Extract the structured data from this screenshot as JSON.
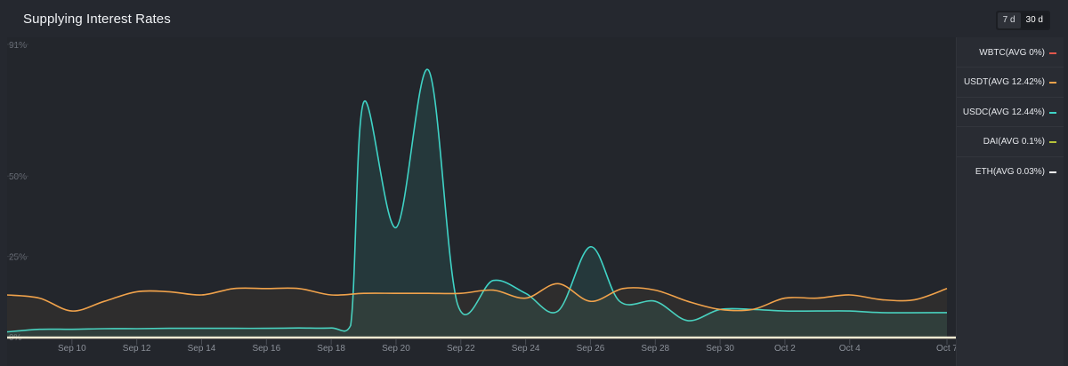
{
  "header": {
    "title": "Supplying Interest Rates",
    "range_options": [
      "7 d",
      "30 d"
    ],
    "range_selected": "30 d"
  },
  "legend": [
    {
      "label": "WBTC(AVG 0%)",
      "color": "#e2574c"
    },
    {
      "label": "USDT(AVG 12.42%)",
      "color": "#f0a24b"
    },
    {
      "label": "USDC(AVG 12.44%)",
      "color": "#3fd3c6"
    },
    {
      "label": "DAI(AVG 0.1%)",
      "color": "#b7c43a"
    },
    {
      "label": "ETH(AVG 0.03%)",
      "color": "#ffffff"
    }
  ],
  "chart_data": {
    "type": "line",
    "title": "Supplying Interest Rates",
    "x_tick_labels": [
      "Sep 10",
      "Sep 12",
      "Sep 14",
      "Sep 16",
      "Sep 18",
      "Sep 20",
      "Sep 22",
      "Sep 24",
      "Sep 26",
      "Sep 28",
      "Sep 30",
      "Oct 2",
      "Oct 4",
      "Oct 7"
    ],
    "y_tick_labels": [
      "0%",
      "25%",
      "50%",
      "91%"
    ],
    "y_ticks": [
      0,
      25,
      50,
      91
    ],
    "ylim": [
      0,
      91
    ],
    "x_range": [
      "Sep 8",
      "Oct 7"
    ],
    "grid": false,
    "legend_placement": "right",
    "series": [
      {
        "name": "USDC(AVG 12.44%)",
        "color": "#3fd3c6",
        "points": [
          [
            "Sep 8",
            1.5
          ],
          [
            "Sep 9",
            2.3
          ],
          [
            "Sep 10",
            2.3
          ],
          [
            "Sep 11",
            2.5
          ],
          [
            "Sep 12",
            2.5
          ],
          [
            "Sep 13",
            2.6
          ],
          [
            "Sep 14",
            2.6
          ],
          [
            "Sep 15",
            2.6
          ],
          [
            "Sep 16",
            2.6
          ],
          [
            "Sep 17",
            2.7
          ],
          [
            "Sep 18",
            2.7
          ],
          [
            "Sep 18.6",
            3.5
          ],
          [
            "Sep 19",
            73
          ],
          [
            "Sep 20",
            34
          ],
          [
            "Sep 21",
            83
          ],
          [
            "Sep 21.9",
            10
          ],
          [
            "Sep 23",
            17.5
          ],
          [
            "Sep 24",
            13.5
          ],
          [
            "Sep 25",
            8
          ],
          [
            "Sep 26",
            28
          ],
          [
            "Sep 26.9",
            11
          ],
          [
            "Sep 28",
            11
          ],
          [
            "Sep 29",
            5
          ],
          [
            "Sep 30",
            8.5
          ],
          [
            "Oct 1",
            8.5
          ],
          [
            "Oct 2",
            8
          ],
          [
            "Oct 3",
            8
          ],
          [
            "Oct 4",
            8
          ],
          [
            "Oct 5",
            7.5
          ],
          [
            "Oct 7",
            7.5
          ]
        ]
      },
      {
        "name": "USDT(AVG 12.42%)",
        "color": "#f0a24b",
        "points": [
          [
            "Sep 8",
            13
          ],
          [
            "Sep 9",
            12
          ],
          [
            "Sep 10",
            8
          ],
          [
            "Sep 11",
            11
          ],
          [
            "Sep 12",
            14
          ],
          [
            "Sep 13",
            14
          ],
          [
            "Sep 14",
            13
          ],
          [
            "Sep 15",
            15
          ],
          [
            "Sep 16",
            15
          ],
          [
            "Sep 17",
            15
          ],
          [
            "Sep 18",
            13
          ],
          [
            "Sep 19",
            13.5
          ],
          [
            "Sep 20",
            13.5
          ],
          [
            "Sep 21",
            13.5
          ],
          [
            "Sep 22",
            13.5
          ],
          [
            "Sep 23",
            14.5
          ],
          [
            "Sep 24",
            12
          ],
          [
            "Sep 25",
            16.5
          ],
          [
            "Sep 26",
            11
          ],
          [
            "Sep 27",
            15
          ],
          [
            "Sep 28",
            14.5
          ],
          [
            "Sep 29",
            11
          ],
          [
            "Sep 30",
            8.5
          ],
          [
            "Oct 1",
            8.5
          ],
          [
            "Oct 2",
            12
          ],
          [
            "Oct 3",
            12
          ],
          [
            "Oct 4",
            13
          ],
          [
            "Oct 5",
            11.5
          ],
          [
            "Oct 6",
            11.5
          ],
          [
            "Oct 7",
            15
          ]
        ]
      },
      {
        "name": "ETH(AVG 0.03%)",
        "color": "#ffffff",
        "points": [
          [
            "Sep 8",
            0
          ],
          [
            "Oct 7",
            0
          ]
        ]
      }
    ]
  }
}
